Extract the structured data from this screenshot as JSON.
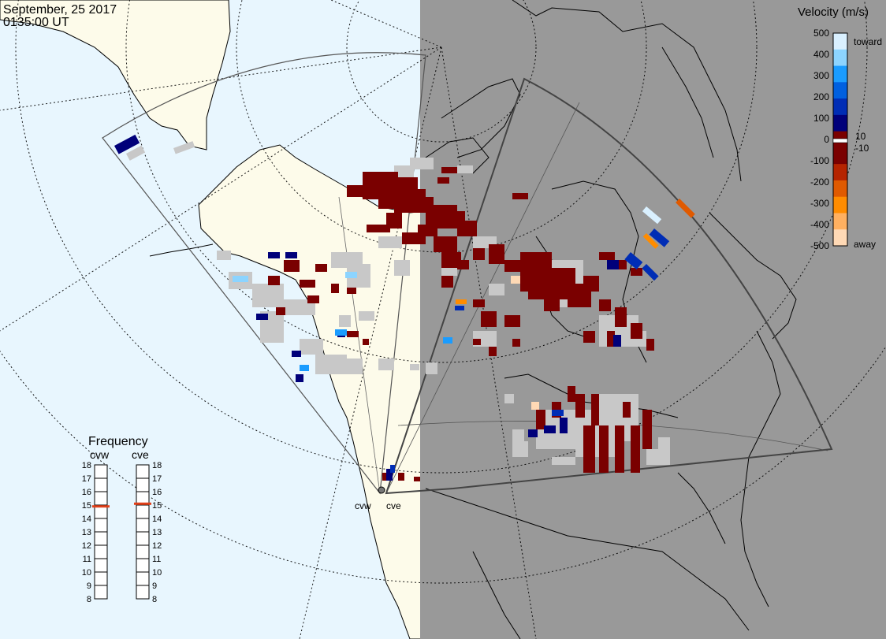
{
  "header": {
    "date": "September, 25 2017",
    "time": "0135:00 UT"
  },
  "colors": {
    "ocean_day": "#e8f6fe",
    "land_day": "#fdfbea",
    "night": "#999999",
    "ground_scatter": "#c8c8c8"
  },
  "velocity_legend": {
    "title": "Velocity (m/s)",
    "ticks": [
      "500",
      "400",
      "300",
      "200",
      "100",
      "0",
      "-100",
      "-200",
      "-300",
      "-400",
      "-500"
    ],
    "inner_ticks": [
      "10",
      "-10"
    ],
    "toward_label": "toward",
    "away_label": "away",
    "colors": [
      "#ffd9b5",
      "#ffb060",
      "#ff8c00",
      "#e05a00",
      "#b52400",
      "#7a0000",
      "#7a0000",
      "#00007a",
      "#002db5",
      "#0060e0",
      "#1a9cff",
      "#8cd4ff",
      "#d9f0ff"
    ]
  },
  "frequency_panel": {
    "title": "Frequency",
    "radars": [
      {
        "name": "cvw",
        "tick_labels": [
          "18",
          "17",
          "16",
          "15",
          "14",
          "13",
          "12",
          "11",
          "10",
          "9",
          "8"
        ],
        "current_mhz": 14.9
      },
      {
        "name": "cve",
        "tick_labels": [
          "18",
          "17",
          "16",
          "15",
          "14",
          "13",
          "12",
          "11",
          "10",
          "9",
          "8"
        ],
        "current_mhz": 15.1
      }
    ]
  },
  "radar_sites": [
    {
      "name": "cvw"
    },
    {
      "name": "cve"
    }
  ]
}
